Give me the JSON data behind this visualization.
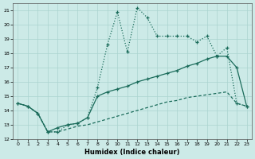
{
  "xlabel": "Humidex (Indice chaleur)",
  "background_color": "#cceae7",
  "grid_color": "#aad4d0",
  "line_color": "#1a6b5a",
  "xlim": [
    -0.5,
    23.5
  ],
  "ylim": [
    12,
    21.5
  ],
  "yticks": [
    12,
    13,
    14,
    15,
    16,
    17,
    18,
    19,
    20,
    21
  ],
  "xticks": [
    0,
    1,
    2,
    3,
    4,
    5,
    6,
    7,
    8,
    9,
    10,
    11,
    12,
    13,
    14,
    15,
    16,
    17,
    18,
    19,
    20,
    21,
    22,
    23
  ],
  "curve1_x": [
    0,
    1,
    2,
    3,
    4,
    5,
    6,
    7,
    8,
    9,
    10,
    11,
    12,
    13,
    14,
    15,
    16,
    17,
    18,
    19,
    20,
    21,
    22,
    23
  ],
  "curve1_y": [
    14.5,
    14.3,
    13.8,
    12.5,
    12.5,
    13.0,
    13.1,
    13.5,
    15.6,
    18.6,
    20.9,
    18.1,
    21.2,
    20.5,
    19.2,
    19.2,
    19.2,
    19.2,
    18.8,
    19.2,
    17.8,
    18.4,
    14.5,
    14.3
  ],
  "curve2_x": [
    0,
    1,
    2,
    3,
    4,
    5,
    6,
    7,
    8,
    9,
    10,
    11,
    12,
    13,
    14,
    15,
    16,
    17,
    18,
    19,
    20,
    21,
    22,
    23
  ],
  "curve2_y": [
    14.5,
    14.3,
    13.8,
    12.5,
    12.8,
    13.0,
    13.1,
    13.5,
    15.0,
    15.3,
    15.5,
    15.7,
    16.0,
    16.2,
    16.4,
    16.6,
    16.8,
    17.1,
    17.3,
    17.6,
    17.8,
    17.8,
    17.0,
    14.3
  ],
  "curve3_x": [
    0,
    1,
    2,
    3,
    4,
    5,
    6,
    7,
    8,
    9,
    10,
    11,
    12,
    13,
    14,
    15,
    16,
    17,
    18,
    19,
    20,
    21,
    22,
    23
  ],
  "curve3_y": [
    14.5,
    14.3,
    13.8,
    12.5,
    12.5,
    12.7,
    12.9,
    13.0,
    13.2,
    13.4,
    13.6,
    13.8,
    14.0,
    14.2,
    14.4,
    14.6,
    14.7,
    14.9,
    15.0,
    15.1,
    15.2,
    15.3,
    14.5,
    14.3
  ]
}
